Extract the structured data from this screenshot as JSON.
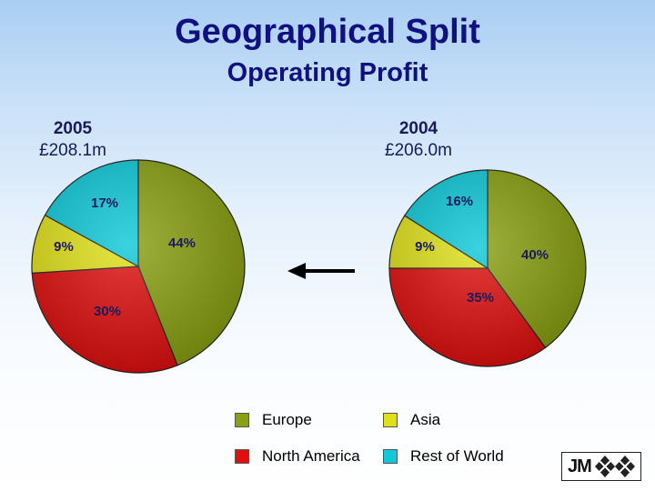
{
  "title": "Geographical Split",
  "subtitle": "Operating Profit",
  "logo_text": "JM",
  "chart_data": [
    {
      "type": "pie",
      "year": "2005",
      "total": "£208.1m",
      "slices": [
        {
          "label": "Europe",
          "value": 44,
          "text": "44%",
          "color": "#8aa012"
        },
        {
          "label": "North America",
          "value": 30,
          "text": "30%",
          "color": "#e01010"
        },
        {
          "label": "Asia",
          "value": 9,
          "text": "9%",
          "color": "#e0e01a"
        },
        {
          "label": "Rest of World",
          "value": 17,
          "text": "17%",
          "color": "#10c8d8"
        }
      ]
    },
    {
      "type": "pie",
      "year": "2004",
      "total": "£206.0m",
      "slices": [
        {
          "label": "Europe",
          "value": 40,
          "text": "40%",
          "color": "#8aa012"
        },
        {
          "label": "North America",
          "value": 35,
          "text": "35%",
          "color": "#e01010"
        },
        {
          "label": "Asia",
          "value": 9,
          "text": "9%",
          "color": "#e0e01a"
        },
        {
          "label": "Rest of World",
          "value": 16,
          "text": "16%",
          "color": "#10c8d8"
        }
      ]
    }
  ],
  "legend": [
    {
      "label": "Europe",
      "color": "#8aa012"
    },
    {
      "label": "Asia",
      "color": "#e0e01a"
    },
    {
      "label": "North America",
      "color": "#e01010"
    },
    {
      "label": "Rest of World",
      "color": "#10c8d8"
    }
  ]
}
